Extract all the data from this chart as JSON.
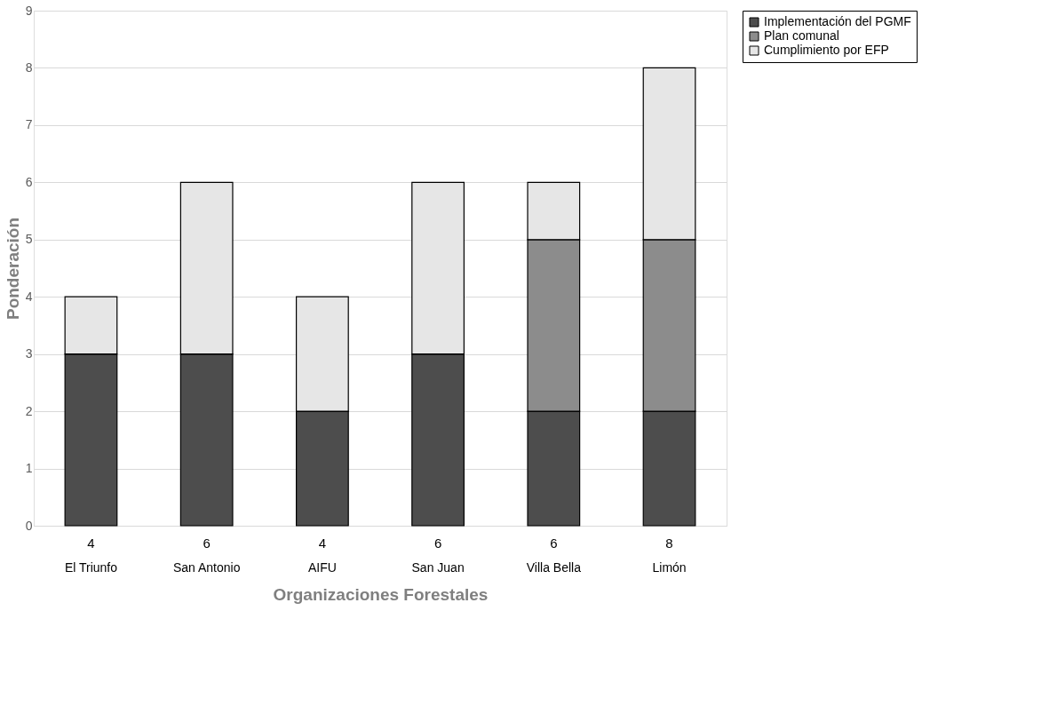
{
  "chart_data": {
    "type": "bar",
    "stacked": true,
    "xlabel": "Organizaciones Forestales",
    "ylabel": "Ponderación",
    "categories": [
      "El Triunfo",
      "San Antonio",
      "AIFU",
      "San Juan",
      "Villa Bella",
      "Limón"
    ],
    "series": [
      {
        "name": "Implementación del PGMF",
        "color": "#4d4d4d",
        "values": [
          3,
          3,
          2,
          3,
          2,
          2
        ]
      },
      {
        "name": "Plan comunal",
        "color": "#8c8c8c",
        "values": [
          0,
          0,
          0,
          0,
          3,
          3
        ]
      },
      {
        "name": "Cumplimiento por EFP",
        "color": "#e6e6e6",
        "values": [
          1,
          3,
          2,
          3,
          1,
          3
        ]
      }
    ],
    "totals": [
      "4",
      "6",
      "4",
      "6",
      "6",
      "8"
    ],
    "ylim": [
      0,
      9
    ],
    "yticks": [
      0,
      1,
      2,
      3,
      4,
      5,
      6,
      7,
      8,
      9
    ],
    "grid": "y",
    "legend": "right"
  }
}
